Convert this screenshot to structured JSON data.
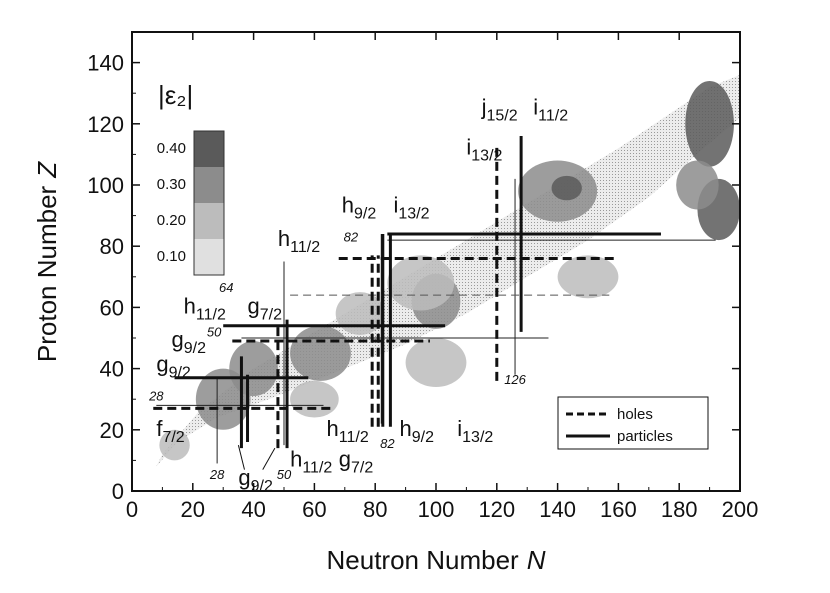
{
  "chart_data": {
    "type": "heatmap",
    "xlabel_main": "Neutron Number",
    "xlabel_var": "N",
    "ylabel_main": "Proton Number",
    "ylabel_var": "Z",
    "xlim": [
      0,
      200
    ],
    "ylim": [
      0,
      150
    ],
    "x_ticks": [
      "0",
      "20",
      "40",
      "60",
      "80",
      "100",
      "120",
      "140",
      "160",
      "180",
      "200"
    ],
    "y_ticks": [
      "0",
      "20",
      "40",
      "60",
      "80",
      "100",
      "120",
      "140"
    ],
    "x_tick_values": [
      0,
      20,
      40,
      60,
      80,
      100,
      120,
      140,
      160,
      180,
      200
    ],
    "y_tick_values": [
      0,
      20,
      40,
      60,
      80,
      100,
      120,
      140
    ],
    "colorbar": {
      "title": "|ε₂|",
      "labels": [
        "0.40",
        "0.30",
        "0.20",
        "0.10"
      ],
      "levels": [
        0.4,
        0.3,
        0.2,
        0.1
      ],
      "colors": [
        "#5a5a5a",
        "#8c8c8c",
        "#bcbcbc",
        "#e0e0e0"
      ]
    },
    "deformation_regions": [
      {
        "n": 30,
        "z": 30,
        "rn": 9,
        "rz": 10,
        "level": 0.3
      },
      {
        "n": 40,
        "z": 40,
        "rn": 8,
        "rz": 9,
        "level": 0.3
      },
      {
        "n": 62,
        "z": 45,
        "rn": 10,
        "rz": 9,
        "level": 0.3
      },
      {
        "n": 75,
        "z": 58,
        "rn": 8,
        "rz": 7,
        "level": 0.2
      },
      {
        "n": 100,
        "z": 62,
        "rn": 8,
        "rz": 9,
        "level": 0.3
      },
      {
        "n": 95,
        "z": 68,
        "rn": 11,
        "rz": 9,
        "level": 0.2
      },
      {
        "n": 100,
        "z": 42,
        "rn": 10,
        "rz": 8,
        "level": 0.2
      },
      {
        "n": 140,
        "z": 98,
        "rn": 13,
        "rz": 10,
        "level": 0.3
      },
      {
        "n": 150,
        "z": 70,
        "rn": 10,
        "rz": 7,
        "level": 0.2
      },
      {
        "n": 190,
        "z": 120,
        "rn": 8,
        "rz": 14,
        "level": 0.4
      },
      {
        "n": 193,
        "z": 92,
        "rn": 7,
        "rz": 10,
        "level": 0.4
      },
      {
        "n": 186,
        "z": 100,
        "rn": 7,
        "rz": 8,
        "level": 0.3
      },
      {
        "n": 143,
        "z": 99,
        "rn": 5,
        "rz": 4,
        "level": 0.4
      },
      {
        "n": 14,
        "z": 15,
        "rn": 5,
        "rz": 5,
        "level": 0.2
      },
      {
        "n": 60,
        "z": 30,
        "rn": 8,
        "rz": 6,
        "level": 0.2
      }
    ],
    "magic_numbers": {
      "neutron": [
        {
          "n": 28,
          "z_range": [
            9,
            37
          ],
          "label": "28",
          "label_at": [
            28,
            4
          ]
        },
        {
          "n": 50,
          "z_range": [
            15,
            75
          ],
          "label": "50",
          "label_at": [
            50,
            4
          ]
        },
        {
          "n": 82,
          "z_range": [
            22,
            84
          ],
          "label": "82",
          "label_at": [
            84,
            14
          ]
        },
        {
          "n": 126,
          "z_range": [
            38,
            102
          ],
          "label": "126",
          "label_at": [
            126,
            35
          ]
        }
      ],
      "proton": [
        {
          "z": 28,
          "n_range": [
            8,
            63
          ],
          "label": "28",
          "label_at": [
            8,
            29.5
          ]
        },
        {
          "z": 50,
          "n_range": [
            36,
            137
          ],
          "label": "50",
          "label_at": [
            27,
            50.5
          ]
        },
        {
          "z": 64,
          "n_range": [
            52,
            157
          ],
          "label": "64",
          "label_at": [
            31,
            65
          ]
        },
        {
          "z": 82,
          "n_range": [
            84,
            192
          ],
          "label": "82",
          "label_at": [
            72,
            81.5
          ]
        }
      ]
    },
    "shell_lines": [
      {
        "kind": "particles",
        "axis": "h",
        "value": 37,
        "from": 14,
        "to": 58
      },
      {
        "kind": "holes",
        "axis": "h",
        "value": 27,
        "from": 7,
        "to": 66
      },
      {
        "kind": "particles",
        "axis": "v",
        "value": 36,
        "from": 14,
        "to": 44
      },
      {
        "kind": "particles",
        "axis": "v",
        "value": 38,
        "from": 16,
        "to": 38
      },
      {
        "kind": "holes",
        "axis": "v",
        "value": 48,
        "from": 14,
        "to": 55
      },
      {
        "kind": "particles",
        "axis": "v",
        "value": 51,
        "from": 14,
        "to": 56
      },
      {
        "kind": "holes",
        "axis": "h",
        "value": 49,
        "from": 33,
        "to": 98
      },
      {
        "kind": "particles",
        "axis": "h",
        "value": 54,
        "from": 30,
        "to": 103
      },
      {
        "kind": "holes",
        "axis": "v",
        "value": 79,
        "from": 21,
        "to": 77
      },
      {
        "kind": "holes",
        "axis": "v",
        "value": 81,
        "from": 21,
        "to": 77
      },
      {
        "kind": "particles",
        "axis": "v",
        "value": 82.5,
        "from": 21,
        "to": 84
      },
      {
        "kind": "particles",
        "axis": "v",
        "value": 85,
        "from": 21,
        "to": 84
      },
      {
        "kind": "holes",
        "axis": "h",
        "value": 76,
        "from": 68,
        "to": 160
      },
      {
        "kind": "particles",
        "axis": "h",
        "value": 84,
        "from": 84,
        "to": 174
      },
      {
        "kind": "holes",
        "axis": "v",
        "value": 120,
        "from": 36,
        "to": 113
      },
      {
        "kind": "particles",
        "axis": "v",
        "value": 128,
        "from": 52,
        "to": 116
      }
    ],
    "orbital_labels": [
      {
        "main": "g",
        "sub": "9/2",
        "at": [
          8,
          39
        ]
      },
      {
        "main": "g",
        "sub": "9/2",
        "at": [
          13,
          47
        ]
      },
      {
        "main": "f",
        "sub": "7/2",
        "at": [
          8,
          18
        ]
      },
      {
        "main": "g",
        "sub": "9/2",
        "at": [
          35,
          2
        ]
      },
      {
        "main": "h",
        "sub": "11/2",
        "at": [
          52,
          8
        ]
      },
      {
        "main": "h",
        "sub": "11/2",
        "at": [
          17,
          58
        ]
      },
      {
        "main": "g",
        "sub": "7/2",
        "at": [
          38,
          58
        ]
      },
      {
        "main": "h",
        "sub": "11/2",
        "at": [
          64,
          18
        ]
      },
      {
        "main": "g",
        "sub": "7/2",
        "at": [
          68,
          8
        ]
      },
      {
        "main": "h",
        "sub": "9/2",
        "at": [
          88,
          18
        ]
      },
      {
        "main": "i",
        "sub": "13/2",
        "at": [
          107,
          18
        ]
      },
      {
        "main": "h",
        "sub": "11/2",
        "at": [
          48,
          80
        ]
      },
      {
        "main": "h",
        "sub": "9/2",
        "at": [
          69,
          91
        ]
      },
      {
        "main": "i",
        "sub": "13/2",
        "at": [
          86,
          91
        ]
      },
      {
        "main": "i",
        "sub": "13/2",
        "at": [
          110,
          110
        ]
      },
      {
        "main": "j",
        "sub": "15/2",
        "at": [
          115,
          123
        ]
      },
      {
        "main": "i",
        "sub": "11/2",
        "at": [
          132,
          123
        ]
      }
    ],
    "legend": {
      "position": "bottom-right",
      "entries": [
        {
          "label": "holes",
          "style": "dashed"
        },
        {
          "label": "particles",
          "style": "solid"
        }
      ]
    }
  }
}
